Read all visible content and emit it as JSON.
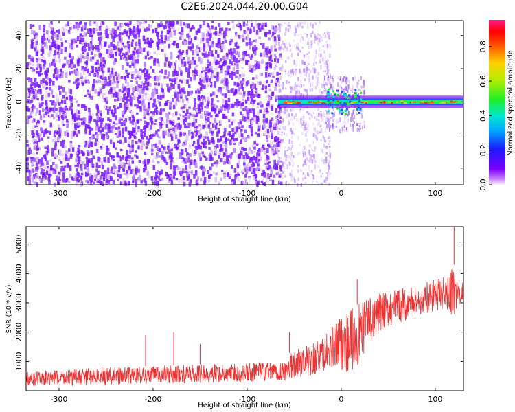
{
  "title": "C2E6.2024.044.20.00.G04",
  "colors": {
    "snr_line": "#ee3333",
    "spectro_low": "#6a00f4",
    "spectro_mid": "#00ddcc",
    "spectro_high": "#ff2222"
  },
  "chart_data": [
    {
      "type": "heatmap",
      "title": "C2E6.2024.044.20.00.G04",
      "xlabel": "Height of straight line (km)",
      "ylabel": "Frequency (Hz)",
      "xlim": [
        -335,
        130
      ],
      "ylim": [
        -50,
        49
      ],
      "xticks": [
        -300,
        -200,
        -100,
        0,
        100
      ],
      "yticks": [
        40,
        20,
        0,
        -20,
        -40
      ],
      "description_regions": [
        {
          "x_range": [
            -335,
            -65
          ],
          "content": "broadband noise, full frequency range"
        },
        {
          "x_range": [
            -65,
            -20
          ],
          "content": "fading noise"
        },
        {
          "x_range": [
            -65,
            130
          ],
          "content": "signal band near 0 Hz"
        }
      ],
      "colorbar": {
        "label": "Normalized spectral amplitude",
        "range": [
          0.0,
          0.95
        ],
        "ticks": [
          0.0,
          0.2,
          0.4,
          0.6,
          0.8
        ]
      },
      "grid": false
    },
    {
      "type": "line",
      "xlabel": "Height of straight line (km)",
      "ylabel": "SNR (10 * v/v)",
      "xlim": [
        -335,
        130
      ],
      "ylim": [
        0,
        5600
      ],
      "xticks": [
        -300,
        -200,
        -100,
        0,
        100
      ],
      "yticks": [
        1000,
        2000,
        3000,
        4000,
        5000
      ],
      "envelope": {
        "x": [
          -335,
          -250,
          -150,
          -60,
          -55,
          -20,
          0,
          10,
          20,
          30,
          50,
          80,
          110,
          120,
          125,
          130
        ],
        "lo": [
          150,
          200,
          250,
          300,
          400,
          600,
          700,
          600,
          900,
          1700,
          2200,
          2500,
          2800,
          2500,
          2900,
          3000
        ],
        "hi": [
          650,
          800,
          900,
          1000,
          1300,
          1800,
          2600,
          2800,
          3000,
          3200,
          3400,
          3600,
          3900,
          4300,
          3600,
          3800
        ]
      },
      "spikes": [
        {
          "x": -208,
          "y": 1900
        },
        {
          "x": -178,
          "y": 2000
        },
        {
          "x": -150,
          "y": 1600
        },
        {
          "x": -55,
          "y": 2000
        },
        {
          "x": 17,
          "y": 3800
        },
        {
          "x": 120,
          "y": 5600
        }
      ],
      "grid": false
    }
  ]
}
